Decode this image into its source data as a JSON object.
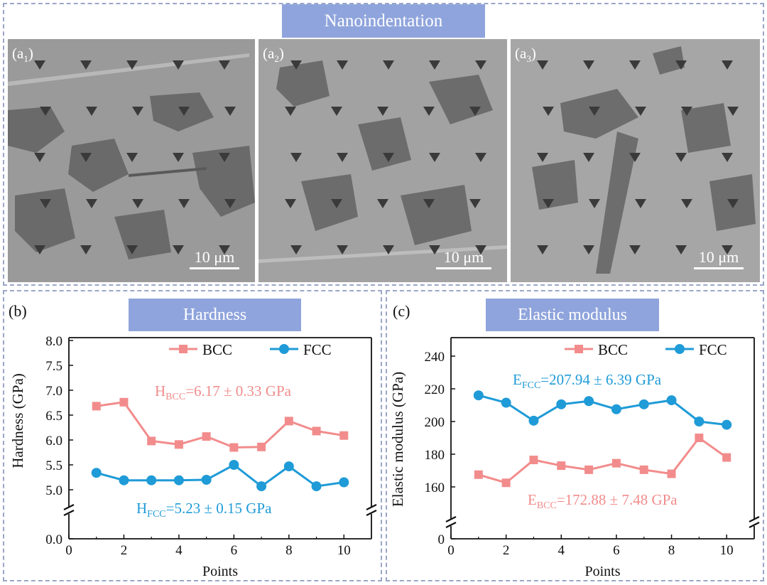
{
  "top": {
    "title": "Nanoindentation",
    "panels": [
      {
        "label_main": "(a",
        "label_sub": "1",
        "label_end": ")",
        "scale": "10 μm"
      },
      {
        "label_main": "(a",
        "label_sub": "2",
        "label_end": ")",
        "scale": "10 μm"
      },
      {
        "label_main": "(a",
        "label_sub": "3",
        "label_end": ")",
        "scale": "10 μm"
      }
    ]
  },
  "colors": {
    "bcc": "#f28c8c",
    "fcc": "#1f9bd7",
    "badge": "#8fa4dc",
    "frame": "#9aa6c9"
  },
  "chart_data": [
    {
      "panel_label": "(b)",
      "badge": "Hardness",
      "type": "line",
      "xlabel": "Points",
      "ylabel": "Hardness (GPa)",
      "x": [
        1,
        2,
        3,
        4,
        5,
        6,
        7,
        8,
        9,
        10
      ],
      "xlim": [
        0,
        11
      ],
      "xticks": [
        "0",
        "2",
        "4",
        "6",
        "8",
        "10"
      ],
      "yticks": [
        "0.0",
        "5.0",
        "5.5",
        "6.0",
        "6.5",
        "7.0",
        "7.5",
        "8.0"
      ],
      "axis_break": true,
      "ylim_upper": [
        4.7,
        8.0
      ],
      "series": [
        {
          "name": "BCC",
          "marker": "square",
          "values": [
            6.68,
            6.76,
            5.98,
            5.91,
            6.07,
            5.85,
            5.86,
            6.38,
            6.18,
            6.09
          ]
        },
        {
          "name": "FCC",
          "marker": "circle",
          "values": [
            5.34,
            5.19,
            5.19,
            5.19,
            5.2,
            5.5,
            5.07,
            5.47,
            5.07,
            5.15
          ]
        }
      ],
      "annotations": [
        {
          "pre": "H",
          "sub": "BCC",
          "post": "=6.17 ± 0.33 GPa",
          "series": "BCC"
        },
        {
          "pre": "H",
          "sub": "FCC",
          "post": "=5.23 ± 0.15 GPa",
          "series": "FCC"
        }
      ],
      "legend_position": "top-right"
    },
    {
      "panel_label": "(c)",
      "badge": "Elastic modulus",
      "type": "line",
      "xlabel": "Points",
      "ylabel": "Elastic modulus (GPa)",
      "x": [
        1,
        2,
        3,
        4,
        5,
        6,
        7,
        8,
        9,
        10
      ],
      "xlim": [
        0,
        11
      ],
      "xticks": [
        "0",
        "2",
        "4",
        "6",
        "8",
        "10"
      ],
      "yticks": [
        "0",
        "160",
        "180",
        "200",
        "220",
        "240"
      ],
      "axis_break": true,
      "ylim_upper": [
        150,
        250
      ],
      "series": [
        {
          "name": "BCC",
          "marker": "square",
          "values": [
            167.5,
            162.5,
            176.5,
            173.0,
            170.5,
            174.5,
            170.5,
            168.0,
            190.0,
            178.0
          ]
        },
        {
          "name": "FCC",
          "marker": "circle",
          "values": [
            216.0,
            211.5,
            200.5,
            210.5,
            212.5,
            207.5,
            210.5,
            213.0,
            200.0,
            198.0
          ]
        }
      ],
      "annotations": [
        {
          "pre": "E",
          "sub": "FCC",
          "post": "=207.94 ± 6.39 GPa",
          "series": "FCC"
        },
        {
          "pre": "E",
          "sub": "BCC",
          "post": "=172.88 ± 7.48 GPa",
          "series": "BCC"
        }
      ],
      "legend_position": "top-right"
    }
  ]
}
